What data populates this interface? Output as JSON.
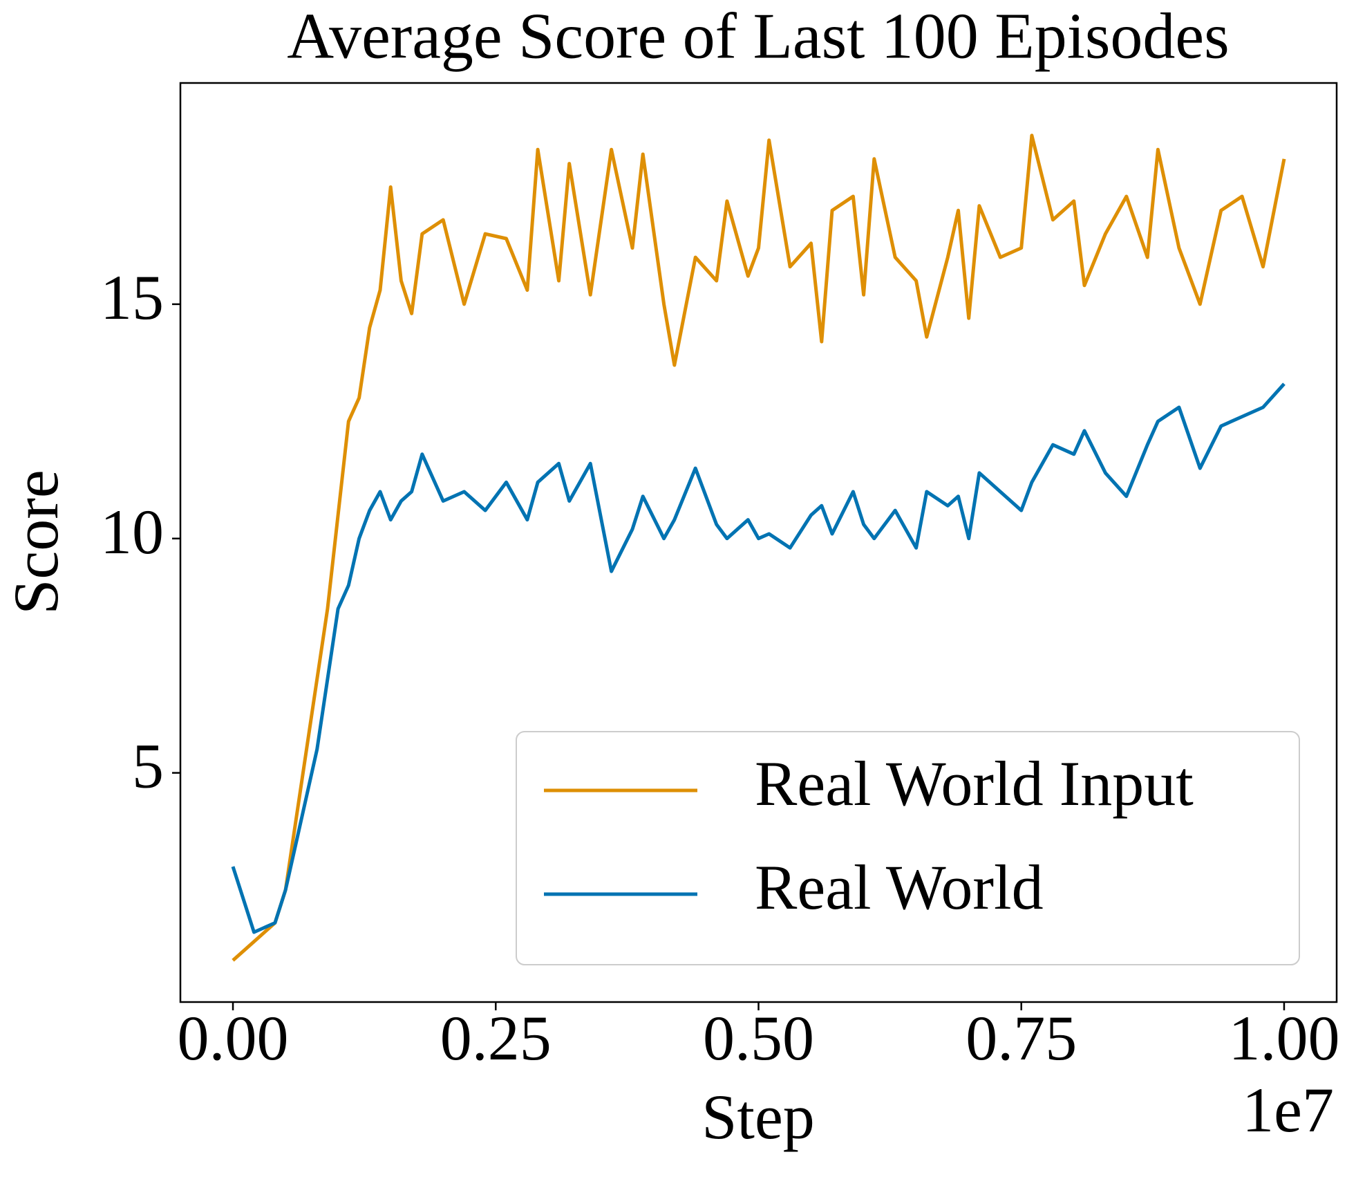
{
  "chart_data": {
    "type": "line",
    "title": "Average Score of Last 100 Episodes",
    "xlabel": "Step",
    "ylabel": "Score",
    "x_offset_label": "1e7",
    "xlim": [
      -0.05,
      1.05
    ],
    "ylim": [
      0.11,
      19.72
    ],
    "xticks": [
      {
        "value": 0,
        "label": "0.00"
      },
      {
        "value": 0.25,
        "label": "0.25"
      },
      {
        "value": 0.5,
        "label": "0.50"
      },
      {
        "value": 0.75,
        "label": "0.75"
      },
      {
        "value": 1,
        "label": "1.00"
      }
    ],
    "yticks": [
      5,
      10,
      15
    ],
    "legend": "lower right",
    "x": [
      0,
      0.02,
      0.04,
      0.05,
      0.06,
      0.07,
      0.08,
      0.09,
      0.1,
      0.11,
      0.12,
      0.13,
      0.14,
      0.15,
      0.16,
      0.17,
      0.18,
      0.2,
      0.22,
      0.24,
      0.26,
      0.28,
      0.29,
      0.31,
      0.32,
      0.34,
      0.36,
      0.38,
      0.39,
      0.41,
      0.42,
      0.44,
      0.46,
      0.47,
      0.49,
      0.5,
      0.51,
      0.53,
      0.55,
      0.56,
      0.57,
      0.59,
      0.6,
      0.61,
      0.63,
      0.65,
      0.66,
      0.68,
      0.69,
      0.7,
      0.71,
      0.73,
      0.75,
      0.76,
      0.78,
      0.8,
      0.81,
      0.83,
      0.85,
      0.87,
      0.88,
      0.9,
      0.92,
      0.94,
      0.96,
      0.98,
      1
    ],
    "series": [
      {
        "name": "Real World Input",
        "color": "#de8f05",
        "values": [
          1.0,
          1.4,
          1.8,
          2.5,
          4.0,
          5.5,
          7.0,
          8.5,
          10.5,
          12.5,
          13.0,
          14.5,
          15.3,
          17.5,
          15.5,
          14.8,
          16.5,
          16.8,
          15.0,
          16.5,
          16.4,
          15.3,
          18.3,
          15.5,
          18.0,
          15.2,
          18.3,
          16.2,
          18.2,
          15.0,
          13.7,
          16.0,
          15.5,
          17.2,
          15.6,
          16.2,
          18.5,
          15.8,
          16.3,
          14.2,
          17.0,
          17.3,
          15.2,
          18.1,
          16.0,
          15.5,
          14.3,
          16.0,
          17.0,
          14.7,
          17.1,
          16.0,
          16.2,
          18.6,
          16.8,
          17.2,
          15.4,
          16.5,
          17.3,
          16.0,
          18.3,
          16.2,
          15.0,
          17.0,
          17.3,
          15.8,
          18.1
        ]
      },
      {
        "name": "Real World",
        "color": "#0173b2",
        "values": [
          3.0,
          1.6,
          1.8,
          2.5,
          3.5,
          4.5,
          5.5,
          7.0,
          8.5,
          9.0,
          10.0,
          10.6,
          11.0,
          10.4,
          10.8,
          11.0,
          11.8,
          10.8,
          11.0,
          10.6,
          11.2,
          10.4,
          11.2,
          11.6,
          10.8,
          11.6,
          9.3,
          10.2,
          10.9,
          10.0,
          10.4,
          11.5,
          10.3,
          10.0,
          10.4,
          10.0,
          10.1,
          9.8,
          10.5,
          10.7,
          10.1,
          11.0,
          10.3,
          10.0,
          10.6,
          9.8,
          11.0,
          10.7,
          10.9,
          10.0,
          11.4,
          11.0,
          10.6,
          11.2,
          12.0,
          11.8,
          12.3,
          11.4,
          10.9,
          12.0,
          12.5,
          12.8,
          11.5,
          12.4,
          12.6,
          12.8,
          13.3
        ]
      }
    ]
  }
}
